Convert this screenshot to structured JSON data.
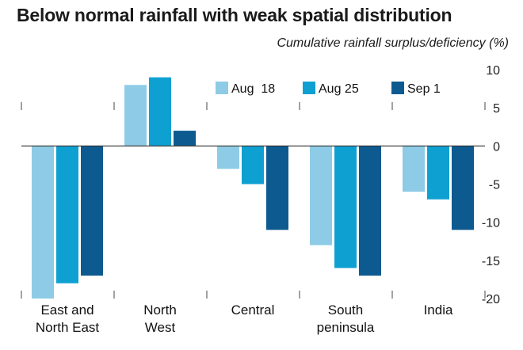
{
  "chart_data": {
    "type": "bar",
    "title": "Below normal rainfall with weak spatial distribution",
    "subtitle": "Cumulative rainfall surplus/deficiency (%)",
    "categories": [
      [
        "East and",
        "North East"
      ],
      [
        "North",
        "West"
      ],
      [
        "Central"
      ],
      [
        "South",
        "peninsula"
      ],
      [
        "India"
      ]
    ],
    "series": [
      {
        "name": "Aug  18",
        "color": "#8ecbe6",
        "values": [
          -20,
          8,
          -3,
          -13,
          -6
        ]
      },
      {
        "name": "Aug 25",
        "color": "#0fa0d2",
        "values": [
          -18,
          9,
          -5,
          -16,
          -7
        ]
      },
      {
        "name": "Sep 1",
        "color": "#0d5a90",
        "values": [
          -17,
          2,
          -11,
          -17,
          -11
        ]
      }
    ],
    "ylim": [
      -20,
      10
    ],
    "yticks": [
      10,
      5,
      0,
      -5,
      -10,
      -15,
      -20
    ],
    "grid": false,
    "legend": "top-center"
  }
}
